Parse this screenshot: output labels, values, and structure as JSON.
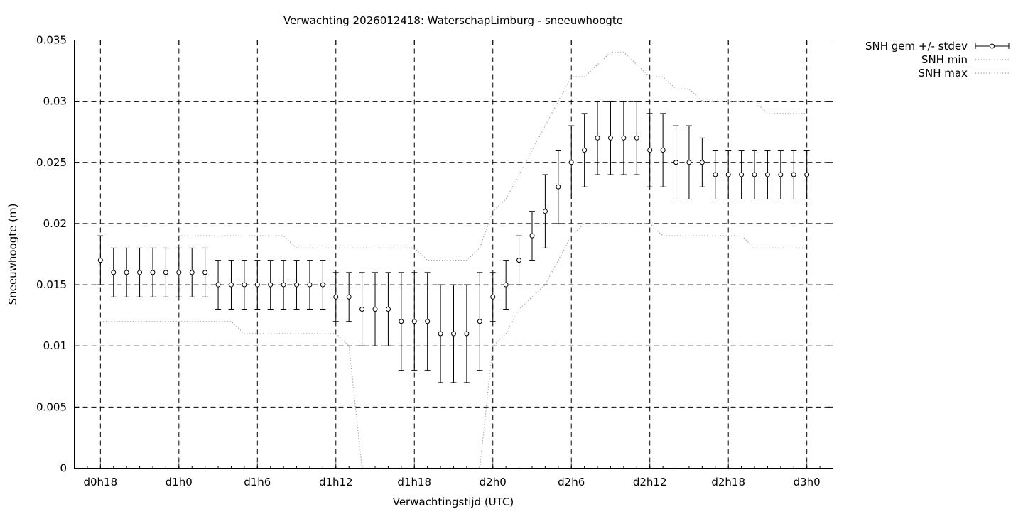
{
  "chart_data": {
    "type": "line",
    "title": "Verwachting 2026012418: WaterschapLimburg - sneeuwhoogte",
    "xlabel": "Verwachtingstijd (UTC)",
    "ylabel": "Sneeuwhoogte (m)",
    "x_unit": "hours",
    "xlim": [
      16,
      74
    ],
    "ylim": [
      0,
      0.035
    ],
    "x_ticks": [
      {
        "x": 18,
        "label": "d0h18"
      },
      {
        "x": 24,
        "label": "d1h0"
      },
      {
        "x": 30,
        "label": "d1h6"
      },
      {
        "x": 36,
        "label": "d1h12"
      },
      {
        "x": 42,
        "label": "d1h18"
      },
      {
        "x": 48,
        "label": "d2h0"
      },
      {
        "x": 54,
        "label": "d2h6"
      },
      {
        "x": 60,
        "label": "d2h12"
      },
      {
        "x": 66,
        "label": "d2h18"
      },
      {
        "x": 72,
        "label": "d3h0"
      }
    ],
    "y_ticks": [
      {
        "y": 0,
        "label": "0"
      },
      {
        "y": 0.005,
        "label": "0.005"
      },
      {
        "y": 0.01,
        "label": "0.01"
      },
      {
        "y": 0.015,
        "label": "0.015"
      },
      {
        "y": 0.02,
        "label": "0.02"
      },
      {
        "y": 0.025,
        "label": "0.025"
      },
      {
        "y": 0.03,
        "label": "0.03"
      },
      {
        "y": 0.035,
        "label": "0.035"
      }
    ],
    "grid": true,
    "legend_position": "top-right outside",
    "series": [
      {
        "name": "SNH gem +/- stdev",
        "style": "errorbars",
        "x": [
          18,
          19,
          20,
          21,
          22,
          23,
          24,
          25,
          26,
          27,
          28,
          29,
          30,
          31,
          32,
          33,
          34,
          35,
          36,
          37,
          38,
          39,
          40,
          41,
          42,
          43,
          44,
          45,
          46,
          47,
          48,
          49,
          50,
          51,
          52,
          53,
          54,
          55,
          56,
          57,
          58,
          59,
          60,
          61,
          62,
          63,
          64,
          65,
          66,
          67,
          68,
          69,
          70,
          71,
          72
        ],
        "y": [
          0.017,
          0.016,
          0.016,
          0.016,
          0.016,
          0.016,
          0.016,
          0.016,
          0.016,
          0.015,
          0.015,
          0.015,
          0.015,
          0.015,
          0.015,
          0.015,
          0.015,
          0.015,
          0.014,
          0.014,
          0.013,
          0.013,
          0.013,
          0.012,
          0.012,
          0.012,
          0.011,
          0.011,
          0.011,
          0.012,
          0.014,
          0.015,
          0.017,
          0.019,
          0.021,
          0.023,
          0.025,
          0.026,
          0.027,
          0.027,
          0.027,
          0.027,
          0.026,
          0.026,
          0.025,
          0.025,
          0.025,
          0.024,
          0.024,
          0.024,
          0.024,
          0.024,
          0.024,
          0.024,
          0.024
        ],
        "stdev": [
          0.002,
          0.002,
          0.002,
          0.002,
          0.002,
          0.002,
          0.002,
          0.002,
          0.002,
          0.002,
          0.002,
          0.002,
          0.002,
          0.002,
          0.002,
          0.002,
          0.002,
          0.002,
          0.002,
          0.002,
          0.003,
          0.003,
          0.003,
          0.004,
          0.004,
          0.004,
          0.004,
          0.004,
          0.004,
          0.004,
          0.002,
          0.002,
          0.002,
          0.002,
          0.003,
          0.003,
          0.003,
          0.003,
          0.003,
          0.003,
          0.003,
          0.003,
          0.003,
          0.003,
          0.003,
          0.003,
          0.002,
          0.002,
          0.002,
          0.002,
          0.002,
          0.002,
          0.002,
          0.002,
          0.002
        ]
      },
      {
        "name": "SNH min",
        "style": "dotted",
        "x": [
          18,
          19,
          20,
          21,
          22,
          23,
          24,
          25,
          26,
          27,
          28,
          29,
          30,
          31,
          32,
          33,
          34,
          35,
          36,
          37,
          38,
          39,
          40,
          41,
          42,
          43,
          44,
          45,
          46,
          47,
          48,
          49,
          50,
          51,
          52,
          53,
          54,
          55,
          56,
          57,
          58,
          59,
          60,
          61,
          62,
          63,
          64,
          65,
          66,
          67,
          68,
          69,
          70,
          71,
          72
        ],
        "y": [
          0.012,
          0.012,
          0.012,
          0.012,
          0.012,
          0.012,
          0.012,
          0.012,
          0.012,
          0.012,
          0.012,
          0.011,
          0.011,
          0.011,
          0.011,
          0.011,
          0.011,
          0.011,
          0.011,
          0.01,
          0,
          0,
          0,
          0,
          0,
          0,
          0,
          0,
          0,
          0,
          0.01,
          0.011,
          0.013,
          0.014,
          0.015,
          0.017,
          0.019,
          0.02,
          0.02,
          0.02,
          0.02,
          0.02,
          0.02,
          0.019,
          0.019,
          0.019,
          0.019,
          0.019,
          0.019,
          0.019,
          0.018,
          0.018,
          0.018,
          0.018,
          0.018
        ]
      },
      {
        "name": "SNH max",
        "style": "dotted",
        "x": [
          24,
          25,
          26,
          27,
          28,
          29,
          30,
          31,
          32,
          33,
          34,
          35,
          36,
          37,
          38,
          39,
          40,
          41,
          42,
          43,
          44,
          45,
          46,
          47,
          48,
          49,
          50,
          51,
          52,
          53,
          54,
          55,
          56,
          57,
          58,
          59,
          60,
          61,
          62,
          63,
          64,
          65,
          66,
          67,
          68,
          69,
          70,
          71,
          72
        ],
        "y": [
          0.019,
          0.019,
          0.019,
          0.019,
          0.019,
          0.019,
          0.019,
          0.019,
          0.019,
          0.018,
          0.018,
          0.018,
          0.018,
          0.018,
          0.018,
          0.018,
          0.018,
          0.018,
          0.018,
          0.017,
          0.017,
          0.017,
          0.017,
          0.018,
          0.021,
          0.022,
          0.024,
          0.026,
          0.028,
          0.03,
          0.032,
          0.032,
          0.033,
          0.034,
          0.034,
          0.033,
          0.032,
          0.032,
          0.031,
          0.031,
          0.03,
          0.03,
          0.03,
          0.03,
          0.03,
          0.029,
          0.029,
          0.029,
          0.029
        ]
      }
    ]
  }
}
